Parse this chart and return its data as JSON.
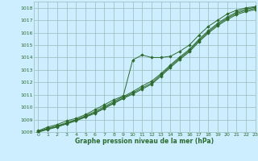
{
  "title": "Graphe pression niveau de la mer (hPa)",
  "background_color": "#cceeff",
  "grid_color": "#99bbbb",
  "line_color": "#2d6a2d",
  "marker_color": "#2d6a2d",
  "xlim": [
    -0.5,
    23
  ],
  "ylim": [
    1008,
    1018.5
  ],
  "xticks": [
    0,
    1,
    2,
    3,
    4,
    5,
    6,
    7,
    8,
    9,
    10,
    11,
    12,
    13,
    14,
    15,
    16,
    17,
    18,
    19,
    20,
    21,
    22,
    23
  ],
  "yticks": [
    1008,
    1009,
    1010,
    1011,
    1012,
    1013,
    1014,
    1015,
    1016,
    1017,
    1018
  ],
  "series": [
    [
      1008.1,
      1008.4,
      1008.6,
      1008.9,
      1009.1,
      1009.4,
      1009.8,
      1010.2,
      1010.6,
      1010.9,
      1013.8,
      1014.2,
      1014.0,
      1014.0,
      1014.1,
      1014.5,
      1015.0,
      1015.8,
      1016.5,
      1017.0,
      1017.5,
      1017.8,
      1018.0,
      1018.1
    ],
    [
      1008.05,
      1008.3,
      1008.5,
      1008.75,
      1009.0,
      1009.3,
      1009.65,
      1010.05,
      1010.45,
      1010.85,
      1011.25,
      1011.7,
      1012.1,
      1012.7,
      1013.4,
      1014.05,
      1014.65,
      1015.45,
      1016.15,
      1016.75,
      1017.25,
      1017.65,
      1017.9,
      1018.05
    ],
    [
      1008.0,
      1008.25,
      1008.45,
      1008.7,
      1008.95,
      1009.25,
      1009.55,
      1009.95,
      1010.35,
      1010.75,
      1011.15,
      1011.55,
      1011.95,
      1012.6,
      1013.3,
      1013.95,
      1014.55,
      1015.35,
      1016.05,
      1016.65,
      1017.15,
      1017.55,
      1017.8,
      1017.95
    ],
    [
      1008.0,
      1008.2,
      1008.4,
      1008.65,
      1008.9,
      1009.2,
      1009.5,
      1009.9,
      1010.3,
      1010.7,
      1011.05,
      1011.45,
      1011.85,
      1012.5,
      1013.2,
      1013.85,
      1014.45,
      1015.25,
      1015.95,
      1016.55,
      1017.05,
      1017.45,
      1017.7,
      1017.85
    ]
  ]
}
